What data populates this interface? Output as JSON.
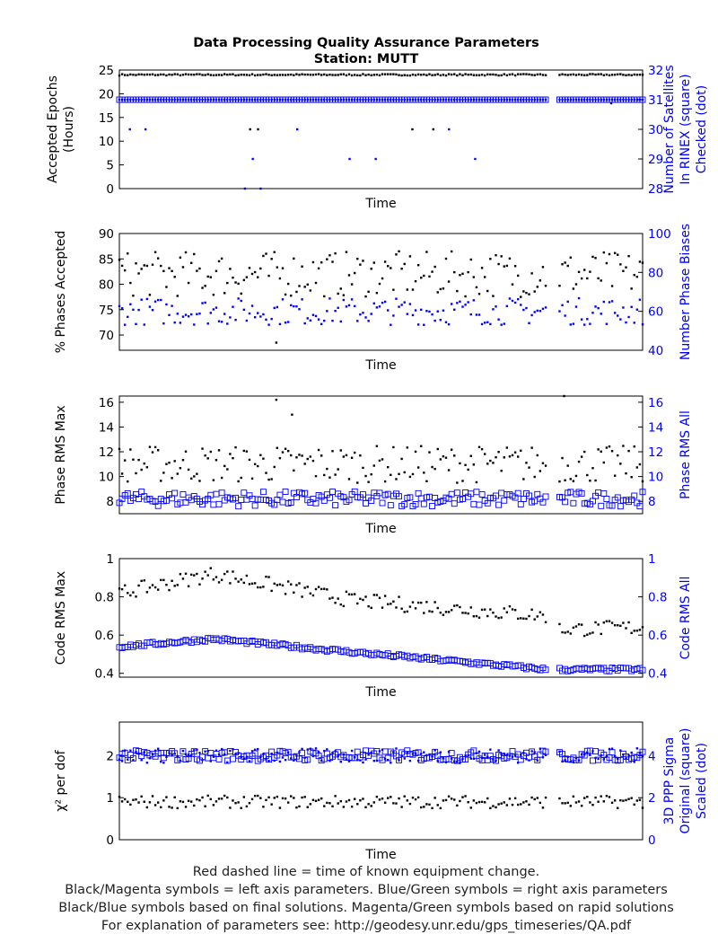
{
  "title": "Data Processing Quality Assurance Parameters",
  "subtitle": "Station: MUTT",
  "colors": {
    "left": "#000000",
    "right": "#0000ff"
  },
  "footnotes": [
    "Red dashed line = time of known equipment change.",
    "Black/Magenta symbols = left axis parameters. Blue/Green symbols = right axis parameters",
    "Black/Blue symbols based on final solutions.  Magenta/Green symbols based on rapid solutions",
    "For explanation of parameters see: http://geodesy.unr.edu/gps_timeseries/QA.pdf"
  ],
  "chart_data": [
    {
      "type": "scatter",
      "xlabel": "Time",
      "ylabel_left": [
        "Accepted Epochs",
        "(Hours)"
      ],
      "ylabel_right": [
        "Number of Satellites",
        "In RINEX (square)",
        "Checked (dot)"
      ],
      "ylim_left": [
        0,
        25
      ],
      "yticks_left": [
        0,
        5,
        10,
        15,
        20,
        25
      ],
      "ylim_right": [
        28,
        32
      ],
      "yticks_right": [
        28,
        29,
        30,
        31,
        32
      ],
      "gap": [
        0.82,
        0.84
      ],
      "series": [
        {
          "axis": "left",
          "marker": "dot",
          "base": 24,
          "noise": 0.15,
          "extra": [
            {
              "x": 0.25,
              "y": 12.5
            },
            {
              "x": 0.265,
              "y": 12.5
            },
            {
              "x": 0.56,
              "y": 12.5
            },
            {
              "x": 0.6,
              "y": 12.5
            },
            {
              "x": 0.94,
              "y": 18
            }
          ]
        },
        {
          "axis": "right",
          "marker": "square",
          "base": 31,
          "noise": 0.0,
          "extra": []
        },
        {
          "axis": "right",
          "marker": "dot",
          "base": 31,
          "noise": 0.0,
          "extra": [
            {
              "x": 0.02,
              "y": 30
            },
            {
              "x": 0.05,
              "y": 30
            },
            {
              "x": 0.24,
              "y": 28
            },
            {
              "x": 0.255,
              "y": 29
            },
            {
              "x": 0.27,
              "y": 28
            },
            {
              "x": 0.34,
              "y": 30
            },
            {
              "x": 0.44,
              "y": 29
            },
            {
              "x": 0.49,
              "y": 29
            },
            {
              "x": 0.63,
              "y": 30
            },
            {
              "x": 0.68,
              "y": 29
            }
          ]
        }
      ]
    },
    {
      "type": "scatter",
      "xlabel": "Time",
      "ylabel_left": [
        "% Phases Accepted"
      ],
      "ylabel_right": [
        "Number Phase Biases"
      ],
      "ylim_left": [
        67,
        90
      ],
      "yticks_left": [
        70,
        75,
        80,
        85,
        90
      ],
      "ylim_right": [
        40,
        100
      ],
      "yticks_right": [
        40,
        60,
        80,
        100
      ],
      "gap": [
        0.82,
        0.84
      ],
      "series": [
        {
          "axis": "left",
          "marker": "dot",
          "base": 82,
          "noise": 4.5,
          "extra": [
            {
              "x": 0.3,
              "y": 68.5
            }
          ]
        },
        {
          "axis": "right",
          "marker": "dot",
          "base": 60,
          "noise": 7,
          "extra": []
        }
      ]
    },
    {
      "type": "scatter",
      "xlabel": "Time",
      "ylabel_left": [
        "Phase RMS Max"
      ],
      "ylabel_right": [
        "Phase RMS All"
      ],
      "ylim_left": [
        7,
        16.5
      ],
      "yticks_left": [
        8,
        10,
        12,
        14,
        16
      ],
      "ylim_right": [
        7,
        16.5
      ],
      "yticks_right": [
        8,
        10,
        12,
        14,
        16
      ],
      "gap": [
        0.82,
        0.84
      ],
      "series": [
        {
          "axis": "left",
          "marker": "dot",
          "base": 11,
          "noise": 1.5,
          "extra": [
            {
              "x": 0.3,
              "y": 16.2
            },
            {
              "x": 0.33,
              "y": 15
            },
            {
              "x": 0.85,
              "y": 16.5
            }
          ]
        },
        {
          "axis": "right",
          "marker": "square",
          "base": 8.2,
          "noise": 0.6,
          "extra": []
        }
      ]
    },
    {
      "type": "scatter",
      "xlabel": "Time",
      "ylabel_left": [
        "Code RMS Max"
      ],
      "ylabel_right": [
        "Code RMS All"
      ],
      "ylim_left": [
        0.38,
        1.0
      ],
      "yticks_left": [
        0.4,
        0.6,
        0.8,
        1
      ],
      "ylim_right": [
        0.38,
        1.0
      ],
      "yticks_right": [
        0.4,
        0.6,
        0.8,
        1
      ],
      "gap": [
        0.82,
        0.84
      ],
      "series": [
        {
          "axis": "left",
          "marker": "dot",
          "trend": [
            [
              0,
              0.82
            ],
            [
              0.18,
              0.92
            ],
            [
              0.45,
              0.78
            ],
            [
              0.82,
              0.7
            ],
            [
              0.84,
              0.63
            ],
            [
              1,
              0.64
            ]
          ],
          "noise": 0.04,
          "extra": []
        },
        {
          "axis": "right",
          "marker": "square",
          "trend": [
            [
              0,
              0.54
            ],
            [
              0.18,
              0.58
            ],
            [
              0.45,
              0.51
            ],
            [
              0.82,
              0.42
            ],
            [
              0.84,
              0.42
            ],
            [
              1,
              0.42
            ]
          ],
          "noise": 0.01,
          "extra": []
        }
      ]
    },
    {
      "type": "scatter",
      "xlabel": "Time",
      "ylabel_left": [
        "χ² per dof"
      ],
      "ylabel_right": [
        "3D PPP Sigma",
        "Original (square)",
        "Scaled (dot)"
      ],
      "ylim_left": [
        0,
        2.8
      ],
      "yticks_left": [
        0,
        1,
        2
      ],
      "ylim_right": [
        0,
        5.6
      ],
      "yticks_right": [
        0,
        2,
        4
      ],
      "gap": [
        0.82,
        0.84
      ],
      "series": [
        {
          "axis": "left",
          "marker": "dot",
          "base": 0.9,
          "noise": 0.15,
          "extra": []
        },
        {
          "axis": "right",
          "marker": "square",
          "base": 4.0,
          "noise": 0.25,
          "extra": []
        },
        {
          "axis": "right",
          "marker": "dot",
          "base": 4.0,
          "noise": 0.35,
          "extra": []
        }
      ]
    }
  ]
}
